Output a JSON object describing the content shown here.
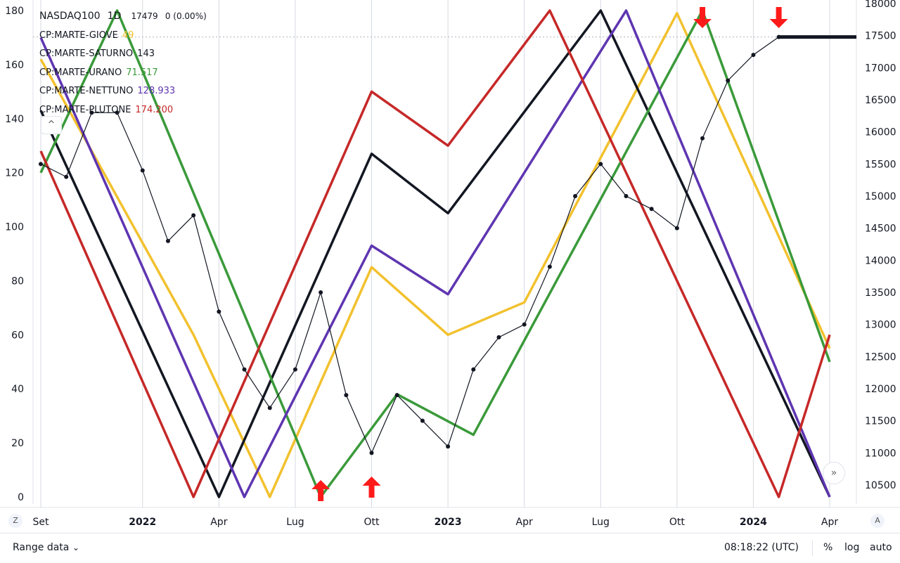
{
  "legend": {
    "symbol": "NASDAQ100",
    "interval": "1D",
    "last_value": "17479",
    "change": "0 (0.00%)",
    "indicators": [
      {
        "name": "CP:MARTE-GIOVE",
        "value": "49",
        "color": "#f2c12e"
      },
      {
        "name": "CP:MARTE-SATURNO",
        "value": "143",
        "color": "#131722"
      },
      {
        "name": "CP:MARTE-URANO",
        "value": "71.517",
        "color": "#3a9a3a"
      },
      {
        "name": "CP:MARTE-NETTUNO",
        "value": "128.933",
        "color": "#5e35b1"
      },
      {
        "name": "CP:MARTE-PLUTONE",
        "value": "174.200",
        "color": "#c62828"
      }
    ]
  },
  "controls": {
    "collapse_icon": "^",
    "z_button": "Z",
    "a_button": "A",
    "goto_icon": "»",
    "range_label": "Range data",
    "chevron": "⌄",
    "time": "08:18:22 (UTC)",
    "percent": "%",
    "log": "log",
    "auto": "auto"
  },
  "chart_data": {
    "type": "line",
    "x_tick_labels": [
      "Set",
      "2022",
      "Apr",
      "Lug",
      "Ott",
      "2023",
      "Apr",
      "Lug",
      "Ott",
      "2024",
      "Apr"
    ],
    "x_bold_labels": [
      "2022",
      "2023",
      "2024"
    ],
    "left_axis": {
      "min": 0,
      "max": 180,
      "ticks": [
        0,
        20,
        40,
        60,
        80,
        100,
        120,
        140,
        160,
        180
      ]
    },
    "right_axis": {
      "ticks": [
        10500,
        11000,
        11500,
        12000,
        12500,
        13000,
        13500,
        14000,
        14500,
        15000,
        15500,
        16000,
        16500,
        17000,
        17500,
        18000
      ]
    },
    "grid": true,
    "price_series": {
      "name": "NASDAQ100",
      "color": "#131722",
      "x": [
        "2021-09",
        "2021-10",
        "2021-11",
        "2021-12",
        "2022-01",
        "2022-02",
        "2022-03",
        "2022-04",
        "2022-05",
        "2022-06",
        "2022-07",
        "2022-08",
        "2022-09",
        "2022-10",
        "2022-11",
        "2022-12",
        "2023-01",
        "2023-02",
        "2023-03",
        "2023-04",
        "2023-05",
        "2023-06",
        "2023-07",
        "2023-08",
        "2023-09",
        "2023-10",
        "2023-11",
        "2023-12",
        "2024-01",
        "2024-02"
      ],
      "values": [
        15500,
        15300,
        16300,
        16300,
        15400,
        14300,
        14700,
        13200,
        12300,
        11700,
        12300,
        13500,
        11900,
        11000,
        11900,
        11500,
        11100,
        12300,
        12800,
        13000,
        13900,
        15000,
        15500,
        15000,
        14800,
        14500,
        15900,
        16800,
        17200,
        17479
      ]
    },
    "indicator_lines": [
      {
        "name": "CP:MARTE-GIOVE",
        "color": "#f2c12e",
        "x": [
          "2021-09",
          "2022-03",
          "2022-06",
          "2022-10",
          "2023-01",
          "2023-04",
          "2023-10",
          "2024-04"
        ],
        "values": [
          162,
          60,
          0,
          85,
          60,
          72,
          179,
          55
        ]
      },
      {
        "name": "CP:MARTE-SATURNO",
        "color": "#131722",
        "x": [
          "2021-09",
          "2022-04",
          "2022-10",
          "2023-01",
          "2023-07",
          "2024-04"
        ],
        "values": [
          143,
          0,
          127,
          105,
          180,
          0
        ]
      },
      {
        "name": "CP:MARTE-URANO",
        "color": "#3a9a3a",
        "x": [
          "2021-09",
          "2021-12",
          "2022-08",
          "2022-11",
          "2023-02",
          "2023-11",
          "2024-04"
        ],
        "values": [
          120,
          180,
          0,
          38,
          23,
          180,
          50
        ]
      },
      {
        "name": "CP:MARTE-NETTUNO",
        "color": "#5e35b1",
        "x": [
          "2021-09",
          "2022-05",
          "2022-10",
          "2023-01",
          "2023-08",
          "2024-04"
        ],
        "values": [
          170,
          0,
          93,
          75,
          180,
          0
        ]
      },
      {
        "name": "CP:MARTE-PLUTONE",
        "color": "#c62828",
        "x": [
          "2021-09",
          "2022-03",
          "2022-10",
          "2023-01",
          "2023-05",
          "2024-02",
          "2024-04"
        ],
        "values": [
          128,
          0,
          150,
          130,
          180,
          0,
          60
        ]
      }
    ],
    "arrows": [
      {
        "direction": "up",
        "color": "#ff1a1a"
      },
      {
        "direction": "up",
        "color": "#ff1a1a"
      },
      {
        "direction": "down",
        "color": "#ff1a1a"
      },
      {
        "direction": "down",
        "color": "#ff1a1a"
      }
    ],
    "last_price_line": {
      "value": 17479,
      "color": "#131722"
    }
  }
}
